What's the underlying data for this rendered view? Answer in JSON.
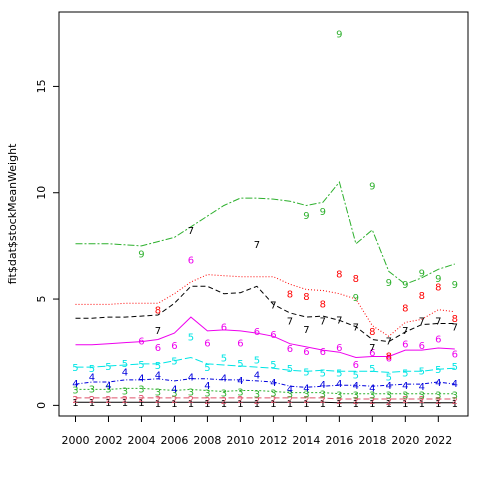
{
  "chart_data": {
    "type": "line",
    "title": "",
    "xlabel": "",
    "ylabel": "fit$dat$stockMeanWeight",
    "xlim": [
      1999.0,
      2023.8
    ],
    "ylim": [
      -0.5,
      18.5
    ],
    "x_ticks": [
      2000,
      2002,
      2004,
      2006,
      2008,
      2010,
      2012,
      2014,
      2016,
      2018,
      2020,
      2022
    ],
    "y_ticks": [
      0,
      5,
      10,
      15
    ],
    "grid": false,
    "legend": "none",
    "years": [
      2000,
      2001,
      2002,
      2003,
      2004,
      2005,
      2006,
      2007,
      2008,
      2009,
      2010,
      2011,
      2012,
      2013,
      2014,
      2015,
      2016,
      2017,
      2018,
      2019,
      2020,
      2021,
      2022,
      2023
    ],
    "series": [
      {
        "label": "1",
        "color": "#000000",
        "dash": "none",
        "fit": [
          0.15,
          0.15,
          0.15,
          0.15,
          0.15,
          0.15,
          0.15,
          0.15,
          0.15,
          0.15,
          0.15,
          0.15,
          0.15,
          0.15,
          0.15,
          0.15,
          0.12,
          0.12,
          0.12,
          0.12,
          0.12,
          0.12,
          0.12,
          0.12
        ],
        "obs": [
          [
            2000,
            0.15
          ],
          [
            2001,
            0.15
          ],
          [
            2002,
            0.15
          ],
          [
            2003,
            0.15
          ],
          [
            2004,
            0.15
          ],
          [
            2005,
            0.12
          ],
          [
            2006,
            0.12
          ],
          [
            2007,
            0.12
          ],
          [
            2008,
            0.12
          ],
          [
            2009,
            0.12
          ],
          [
            2010,
            0.12
          ],
          [
            2011,
            0.12
          ],
          [
            2012,
            0.12
          ],
          [
            2013,
            0.12
          ],
          [
            2014,
            0.12
          ],
          [
            2015,
            0.12
          ],
          [
            2016,
            0.1
          ],
          [
            2017,
            0.1
          ],
          [
            2018,
            0.1
          ],
          [
            2019,
            0.1
          ],
          [
            2020,
            0.1
          ],
          [
            2021,
            0.1
          ],
          [
            2022,
            0.1
          ],
          [
            2023,
            0.1
          ]
        ]
      },
      {
        "label": "2",
        "color": "#DF536B",
        "dash": "6,3",
        "fit": [
          0.35,
          0.35,
          0.35,
          0.35,
          0.35,
          0.35,
          0.35,
          0.35,
          0.35,
          0.35,
          0.35,
          0.35,
          0.35,
          0.35,
          0.35,
          0.35,
          0.3,
          0.3,
          0.3,
          0.3,
          0.3,
          0.3,
          0.3,
          0.3
        ],
        "obs": [
          [
            2000,
            0.3
          ],
          [
            2001,
            0.3
          ],
          [
            2002,
            0.3
          ],
          [
            2003,
            0.3
          ],
          [
            2004,
            0.35
          ],
          [
            2005,
            0.3
          ],
          [
            2006,
            0.3
          ],
          [
            2007,
            0.3
          ],
          [
            2008,
            0.25
          ],
          [
            2009,
            0.25
          ],
          [
            2010,
            0.3
          ],
          [
            2011,
            0.25
          ],
          [
            2012,
            0.3
          ],
          [
            2013,
            0.3
          ],
          [
            2014,
            0.3
          ],
          [
            2015,
            0.3
          ],
          [
            2016,
            0.25
          ],
          [
            2017,
            0.25
          ],
          [
            2018,
            0.25
          ],
          [
            2019,
            0.2
          ],
          [
            2020,
            0.3
          ],
          [
            2021,
            0.3
          ],
          [
            2022,
            0.25
          ],
          [
            2023,
            0.25
          ]
        ]
      },
      {
        "label": "3",
        "color": "#2DB02D",
        "dash": "2,2",
        "fit": [
          0.75,
          0.75,
          0.75,
          0.8,
          0.8,
          0.75,
          0.7,
          0.75,
          0.7,
          0.65,
          0.7,
          0.7,
          0.65,
          0.6,
          0.6,
          0.6,
          0.55,
          0.55,
          0.55,
          0.55,
          0.55,
          0.55,
          0.55,
          0.55
        ],
        "obs": [
          [
            2000,
            0.75
          ],
          [
            2001,
            0.8
          ],
          [
            2002,
            0.8
          ],
          [
            2003,
            0.7
          ],
          [
            2004,
            0.8
          ],
          [
            2005,
            0.65
          ],
          [
            2006,
            0.6
          ],
          [
            2007,
            0.65
          ],
          [
            2008,
            0.6
          ],
          [
            2009,
            0.6
          ],
          [
            2010,
            0.65
          ],
          [
            2011,
            0.55
          ],
          [
            2012,
            0.6
          ],
          [
            2013,
            0.55
          ],
          [
            2014,
            0.55
          ],
          [
            2015,
            0.55
          ],
          [
            2016,
            0.5
          ],
          [
            2017,
            0.5
          ],
          [
            2018,
            0.5
          ],
          [
            2019,
            0.5
          ],
          [
            2020,
            0.5
          ],
          [
            2021,
            0.5
          ],
          [
            2022,
            0.5
          ],
          [
            2023,
            0.5
          ]
        ]
      },
      {
        "label": "4",
        "color": "#0000DD",
        "dash": "4,2,1,2",
        "fit": [
          1.0,
          1.1,
          1.1,
          1.2,
          1.2,
          1.25,
          1.15,
          1.25,
          1.25,
          1.2,
          1.2,
          1.15,
          1.1,
          0.9,
          0.85,
          0.9,
          0.95,
          0.95,
          0.9,
          0.95,
          1.0,
          1.0,
          1.1,
          1.0
        ],
        "obs": [
          [
            2000,
            1.05
          ],
          [
            2001,
            1.35
          ],
          [
            2002,
            0.95
          ],
          [
            2003,
            1.6
          ],
          [
            2004,
            1.3
          ],
          [
            2005,
            1.45
          ],
          [
            2006,
            0.8
          ],
          [
            2007,
            1.35
          ],
          [
            2008,
            0.95
          ],
          [
            2009,
            1.3
          ],
          [
            2010,
            1.2
          ],
          [
            2011,
            1.45
          ],
          [
            2012,
            1.1
          ],
          [
            2013,
            0.8
          ],
          [
            2014,
            0.85
          ],
          [
            2015,
            1.0
          ],
          [
            2016,
            1.05
          ],
          [
            2017,
            0.95
          ],
          [
            2018,
            0.85
          ],
          [
            2019,
            0.95
          ],
          [
            2020,
            0.95
          ],
          [
            2021,
            0.9
          ],
          [
            2022,
            1.1
          ],
          [
            2023,
            1.05
          ]
        ]
      },
      {
        "label": "5",
        "color": "#00E5E5",
        "dash": "8,3",
        "fit": [
          1.8,
          1.8,
          1.85,
          1.9,
          1.95,
          1.95,
          2.1,
          2.25,
          1.95,
          1.9,
          1.85,
          1.8,
          1.75,
          1.65,
          1.6,
          1.65,
          1.6,
          1.6,
          1.6,
          1.55,
          1.6,
          1.6,
          1.7,
          1.75
        ],
        "obs": [
          [
            2000,
            1.8
          ],
          [
            2001,
            1.75
          ],
          [
            2002,
            1.85
          ],
          [
            2003,
            2.0
          ],
          [
            2004,
            1.95
          ],
          [
            2005,
            1.9
          ],
          [
            2006,
            2.1
          ],
          [
            2007,
            3.25
          ],
          [
            2008,
            1.8
          ],
          [
            2009,
            2.25
          ],
          [
            2010,
            2.0
          ],
          [
            2011,
            2.15
          ],
          [
            2012,
            1.95
          ],
          [
            2013,
            1.75
          ],
          [
            2014,
            1.6
          ],
          [
            2015,
            1.55
          ],
          [
            2016,
            1.55
          ],
          [
            2017,
            1.45
          ],
          [
            2018,
            1.75
          ],
          [
            2019,
            1.35
          ],
          [
            2020,
            1.55
          ],
          [
            2021,
            1.65
          ],
          [
            2022,
            1.7
          ],
          [
            2023,
            1.85
          ]
        ]
      },
      {
        "label": "6",
        "color": "#EE00EE",
        "dash": "none",
        "fit": [
          2.85,
          2.85,
          2.9,
          2.95,
          3.0,
          3.1,
          3.4,
          4.15,
          3.5,
          3.55,
          3.5,
          3.4,
          3.25,
          2.9,
          2.75,
          2.6,
          2.5,
          2.25,
          2.3,
          2.3,
          2.6,
          2.6,
          2.7,
          2.65
        ],
        "obs": [
          [
            2004,
            3.05
          ],
          [
            2005,
            2.75
          ],
          [
            2006,
            2.85
          ],
          [
            2007,
            6.85
          ],
          [
            2008,
            2.95
          ],
          [
            2009,
            3.7
          ],
          [
            2010,
            2.95
          ],
          [
            2011,
            3.5
          ],
          [
            2012,
            3.35
          ],
          [
            2013,
            2.7
          ],
          [
            2014,
            2.55
          ],
          [
            2015,
            2.55
          ],
          [
            2016,
            2.75
          ],
          [
            2017,
            1.95
          ],
          [
            2018,
            2.5
          ],
          [
            2019,
            2.25
          ],
          [
            2020,
            2.9
          ],
          [
            2021,
            2.85
          ],
          [
            2022,
            3.15
          ],
          [
            2023,
            2.45
          ]
        ]
      },
      {
        "label": "7",
        "color": "#000000",
        "dash": "5,3",
        "fit": [
          4.1,
          4.1,
          4.15,
          4.15,
          4.2,
          4.25,
          4.8,
          5.6,
          5.6,
          5.25,
          5.3,
          5.6,
          4.75,
          4.35,
          4.15,
          4.2,
          4.0,
          3.7,
          3.1,
          3.0,
          3.45,
          3.8,
          3.85,
          3.85
        ],
        "obs": [
          [
            2005,
            3.55
          ],
          [
            2007,
            8.25
          ],
          [
            2011,
            7.6
          ],
          [
            2012,
            4.75
          ],
          [
            2013,
            4.0
          ],
          [
            2014,
            3.6
          ],
          [
            2015,
            4.0
          ],
          [
            2016,
            4.05
          ],
          [
            2017,
            3.7
          ],
          [
            2018,
            2.75
          ],
          [
            2019,
            3.05
          ],
          [
            2020,
            3.55
          ],
          [
            2021,
            4.0
          ],
          [
            2022,
            4.0
          ],
          [
            2023,
            3.7
          ]
        ]
      },
      {
        "label": "8",
        "color": "#FF0000",
        "dash": "1,2",
        "fit": [
          4.75,
          4.75,
          4.75,
          4.8,
          4.8,
          4.8,
          5.25,
          5.8,
          6.15,
          6.1,
          6.05,
          6.05,
          6.05,
          5.7,
          5.45,
          5.4,
          5.25,
          5.0,
          3.75,
          3.25,
          3.9,
          4.05,
          4.5,
          4.4
        ],
        "obs": [
          [
            2005,
            4.5
          ],
          [
            2013,
            5.25
          ],
          [
            2014,
            5.15
          ],
          [
            2015,
            4.8
          ],
          [
            2016,
            6.2
          ],
          [
            2017,
            6.0
          ],
          [
            2018,
            3.5
          ],
          [
            2019,
            2.35
          ],
          [
            2020,
            4.6
          ],
          [
            2021,
            5.2
          ],
          [
            2022,
            5.6
          ],
          [
            2023,
            4.1
          ]
        ]
      },
      {
        "label": "9",
        "color": "#2DB02D",
        "dash": "7,2,2,2",
        "fit": [
          7.6,
          7.6,
          7.6,
          7.55,
          7.5,
          7.7,
          7.9,
          8.4,
          8.9,
          9.4,
          9.75,
          9.75,
          9.7,
          9.6,
          9.4,
          9.55,
          10.5,
          7.6,
          8.25,
          6.3,
          5.7,
          6.0,
          6.4,
          6.65
        ],
        "obs": [
          [
            2004,
            7.15
          ],
          [
            2014,
            8.95
          ],
          [
            2015,
            9.15
          ],
          [
            2016,
            17.5
          ],
          [
            2017,
            5.1
          ],
          [
            2018,
            10.35
          ],
          [
            2019,
            5.8
          ],
          [
            2020,
            5.7
          ],
          [
            2021,
            6.25
          ],
          [
            2022,
            6.0
          ],
          [
            2023,
            5.7
          ]
        ]
      }
    ]
  }
}
